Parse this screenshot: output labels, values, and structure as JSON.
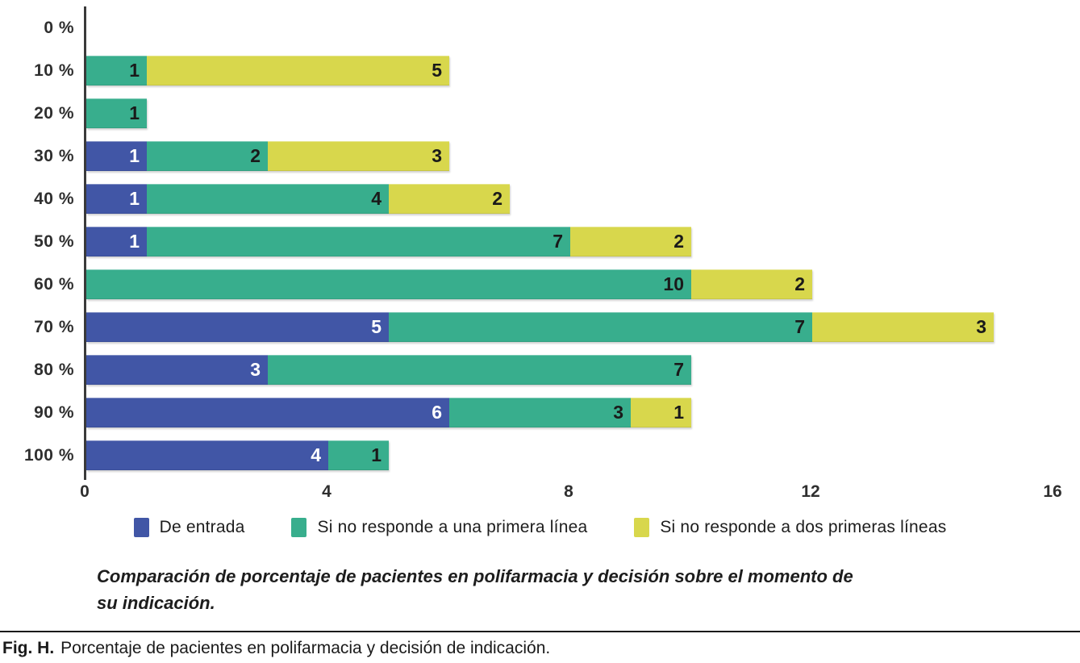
{
  "chart_data": {
    "type": "bar",
    "orientation": "horizontal",
    "stacked": true,
    "title": "",
    "xlabel": "",
    "ylabel": "",
    "categories": [
      "0 %",
      "10 %",
      "20 %",
      "30 %",
      "40 %",
      "50 %",
      "60 %",
      "70 %",
      "80 %",
      "90 %",
      "100 %"
    ],
    "series": [
      {
        "name": "De entrada",
        "color": "#4156a6",
        "label_color": "#ffffff",
        "values": [
          0,
          0,
          0,
          1,
          1,
          1,
          0,
          5,
          3,
          6,
          4
        ]
      },
      {
        "name": "Si no responde a una primera línea",
        "color": "#38ae8d",
        "label_color": "#1a1a1a",
        "values": [
          0,
          1,
          1,
          2,
          4,
          7,
          10,
          7,
          7,
          3,
          1
        ]
      },
      {
        "name": "Si no responde a dos primeras líneas",
        "color": "#d8d74c",
        "label_color": "#1a1a1a",
        "values": [
          0,
          5,
          0,
          3,
          2,
          2,
          2,
          3,
          0,
          1,
          0
        ]
      }
    ],
    "xlim": [
      0,
      16
    ],
    "x_ticks": [
      0,
      4,
      8,
      12,
      16
    ],
    "grid": false,
    "legend_position": "bottom",
    "bar_value_labels_shown": true
  },
  "caption": {
    "text": "Comparación de porcentaje de pacientes en polifarmacia y decisión sobre el momento de su indicación."
  },
  "figure": {
    "label": "Fig. H.",
    "text": "Porcentaje de pacientes en polifarmacia y decisión de indicación."
  }
}
